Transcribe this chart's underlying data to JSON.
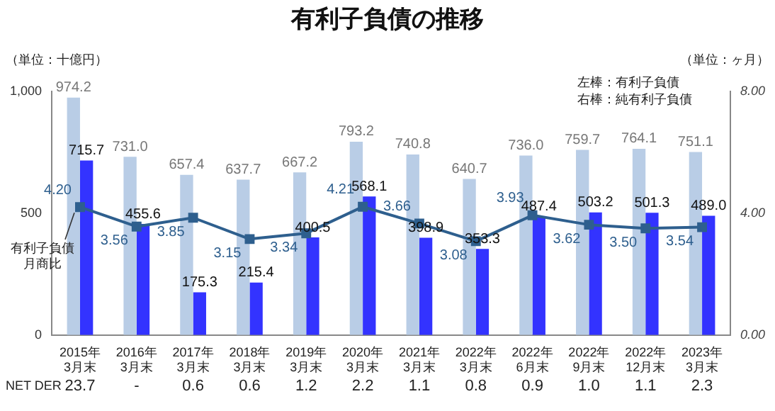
{
  "chart_data": {
    "type": "bar",
    "title": "有利子負債の推移",
    "ylabel": "（単位：十億円）",
    "y2label": "（単位：ヶ月）",
    "categories": [
      "2015年\n3月末",
      "2016年\n3月末",
      "2017年\n3月末",
      "2018年\n3月末",
      "2019年\n3月末",
      "2020年\n3月末",
      "2021年\n3月末",
      "2022年\n3月末",
      "2022年\n6月末",
      "2022年\n9月末",
      "2022年\n12月末",
      "2023年\n3月末"
    ],
    "series": [
      {
        "color": "#b9cde6",
        "values": [
          974.2,
          731.0,
          657.4,
          637.7,
          667.2,
          793.2,
          740.8,
          640.7,
          736.0,
          759.7,
          764.1,
          751.1
        ],
        "value_labels": [
          "974.2",
          "731.0",
          "657.4",
          "637.7",
          "667.2",
          "793.2",
          "740.8",
          "640.7",
          "736.0",
          "759.7",
          "764.1",
          "751.1"
        ]
      },
      {
        "color": "#3333ff",
        "values": [
          715.7,
          455.6,
          175.3,
          215.4,
          400.5,
          568.1,
          398.9,
          353.3,
          487.4,
          503.2,
          501.3,
          489.0
        ],
        "value_labels": [
          "715.7",
          "455.6",
          "175.3",
          "215.4",
          "400.5",
          "568.1",
          "398.9",
          "353.3",
          "487.4",
          "503.2",
          "501.3",
          "489.0"
        ]
      },
      {
        "type": "line",
        "name": "有利子負債月商比",
        "axis": "y2",
        "color": "#2e5f8e",
        "marker": "square",
        "values": [
          4.2,
          3.56,
          3.85,
          3.15,
          3.34,
          4.21,
          3.66,
          3.08,
          3.93,
          3.62,
          3.5,
          3.54
        ],
        "value_labels": [
          "4.20",
          "3.56",
          "3.85",
          "3.15",
          "3.34",
          "4.21",
          "3.66",
          "3.08",
          "3.93",
          "3.62",
          "3.50",
          "3.54"
        ]
      }
    ],
    "ylim": [
      0,
      1000
    ],
    "yticks": [
      0,
      500,
      {
        "value": 1000,
        "label": "1,000"
      }
    ],
    "y2lim": [
      0,
      8
    ],
    "y2ticks": [
      {
        "value": 0,
        "label": "0.00"
      },
      {
        "value": 4,
        "label": "4.00"
      },
      {
        "value": 8,
        "label": "8.00"
      }
    ],
    "grid": false,
    "legend": false,
    "annotations": [
      "左棒：有利子負債",
      "右棒：純有利子負債",
      "NET DER",
      "23.7",
      "-",
      "0.6",
      "0.6",
      "1.2",
      "2.2",
      "1.1",
      "0.8",
      "0.9",
      "1.0",
      "1.1",
      "2.3"
    ]
  }
}
